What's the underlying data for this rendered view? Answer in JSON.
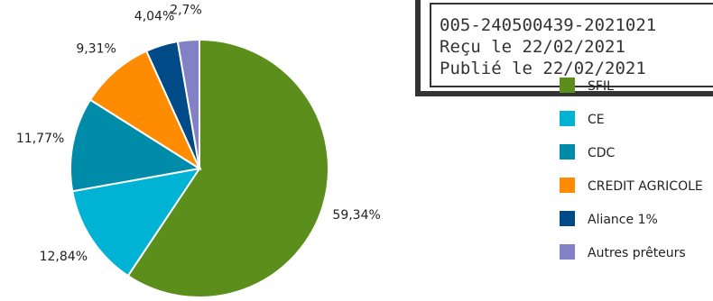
{
  "stamp": {
    "lines": [
      "005-240500439-2021021",
      "Reçu le 22/02/2021",
      "Publié le 22/02/2021"
    ]
  },
  "chart_data": {
    "type": "pie",
    "title": "",
    "slices": [
      {
        "label": "SFIL",
        "value": 59.34,
        "value_label": "59,34%",
        "color": "#5b8e1a"
      },
      {
        "label": "CE",
        "value": 12.84,
        "value_label": "12,84%",
        "color": "#00b2d4"
      },
      {
        "label": "CDC",
        "value": 11.77,
        "value_label": "11,77%",
        "color": "#008ca8"
      },
      {
        "label": "CREDIT AGRICOLE",
        "value": 9.31,
        "value_label": "9,31%",
        "color": "#ff8c00"
      },
      {
        "label": "Aliance 1%",
        "value": 4.04,
        "value_label": "4,04%",
        "color": "#004a87"
      },
      {
        "label": "Autres prêteurs",
        "value": 2.7,
        "value_label": "2,7%",
        "color": "#8281c6"
      }
    ],
    "start_angle_deg": 0,
    "direction": "clockwise",
    "legend_position": "right"
  }
}
